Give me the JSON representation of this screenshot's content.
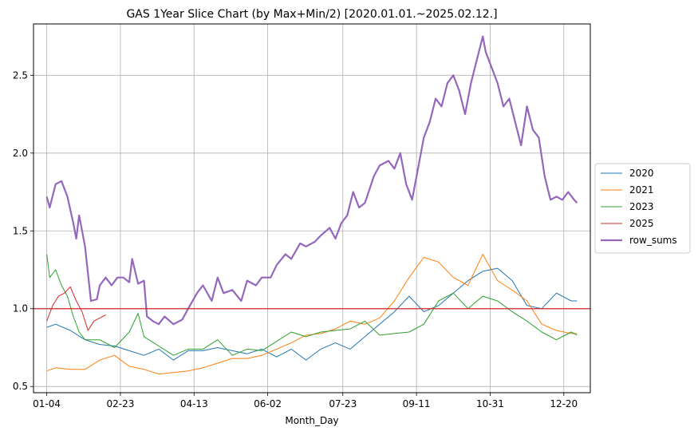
{
  "chart_data": {
    "type": "line",
    "title": "GAS 1Year Slice Chart (by Max+Min/2) [2020.01.01.~2025.02.12.]",
    "xlabel": "Month_Day",
    "ylabel": "",
    "x_ticks": [
      "01-04",
      "02-23",
      "04-13",
      "06-02",
      "07-23",
      "09-11",
      "10-31",
      "12-20"
    ],
    "x_tick_days": [
      4,
      54,
      104,
      154,
      205,
      255,
      305,
      355
    ],
    "xlim": [
      -5,
      373
    ],
    "ylim": [
      0.46,
      2.83
    ],
    "y_ticks": [
      0.5,
      1.0,
      1.5,
      2.0,
      2.5
    ],
    "y_tick_labels": [
      "0.5",
      "1.0",
      "1.5",
      "2.0",
      "2.5"
    ],
    "grid": true,
    "legend_position": "center-right (outside)",
    "reference_line": {
      "y": 1.0,
      "color": "#d62728"
    },
    "series": [
      {
        "name": "2020",
        "color": "#1f77b4",
        "width": 1,
        "x": [
          4,
          10,
          20,
          30,
          40,
          50,
          60,
          70,
          80,
          90,
          100,
          110,
          120,
          130,
          140,
          150,
          160,
          170,
          180,
          190,
          200,
          210,
          220,
          230,
          240,
          250,
          260,
          270,
          280,
          290,
          300,
          310,
          320,
          330,
          340,
          350,
          360,
          364
        ],
        "y": [
          0.88,
          0.9,
          0.86,
          0.8,
          0.77,
          0.76,
          0.73,
          0.7,
          0.74,
          0.67,
          0.73,
          0.73,
          0.75,
          0.73,
          0.71,
          0.74,
          0.69,
          0.74,
          0.67,
          0.74,
          0.78,
          0.74,
          0.82,
          0.9,
          0.98,
          1.08,
          0.98,
          1.02,
          1.1,
          1.18,
          1.24,
          1.26,
          1.18,
          1.02,
          1.0,
          1.1,
          1.05,
          1.05
        ]
      },
      {
        "name": "2021",
        "color": "#ff7f0e",
        "width": 1,
        "x": [
          4,
          10,
          20,
          30,
          40,
          50,
          60,
          70,
          80,
          90,
          100,
          110,
          120,
          130,
          140,
          150,
          160,
          170,
          180,
          190,
          200,
          210,
          220,
          230,
          240,
          250,
          260,
          270,
          280,
          290,
          300,
          310,
          320,
          330,
          340,
          350,
          360,
          364
        ],
        "y": [
          0.6,
          0.62,
          0.61,
          0.61,
          0.67,
          0.7,
          0.63,
          0.61,
          0.58,
          0.59,
          0.6,
          0.62,
          0.65,
          0.68,
          0.68,
          0.7,
          0.74,
          0.78,
          0.83,
          0.84,
          0.87,
          0.92,
          0.9,
          0.94,
          1.05,
          1.2,
          1.33,
          1.3,
          1.2,
          1.15,
          1.35,
          1.18,
          1.12,
          1.05,
          0.9,
          0.86,
          0.84,
          0.84
        ]
      },
      {
        "name": "2023",
        "color": "#2ca02c",
        "width": 1,
        "x": [
          4,
          6,
          10,
          14,
          18,
          22,
          26,
          30,
          40,
          50,
          60,
          66,
          70,
          80,
          90,
          100,
          110,
          120,
          130,
          140,
          150,
          160,
          170,
          180,
          190,
          200,
          210,
          220,
          230,
          240,
          250,
          260,
          270,
          280,
          290,
          300,
          310,
          320,
          330,
          340,
          350,
          360,
          364
        ],
        "y": [
          1.35,
          1.2,
          1.25,
          1.15,
          1.08,
          0.95,
          0.85,
          0.8,
          0.8,
          0.75,
          0.85,
          0.97,
          0.82,
          0.76,
          0.7,
          0.74,
          0.74,
          0.8,
          0.7,
          0.74,
          0.73,
          0.79,
          0.85,
          0.82,
          0.85,
          0.86,
          0.87,
          0.92,
          0.83,
          0.84,
          0.85,
          0.9,
          1.05,
          1.1,
          1.0,
          1.08,
          1.05,
          0.98,
          0.92,
          0.85,
          0.8,
          0.85,
          0.83
        ]
      },
      {
        "name": "2025",
        "color": "#d62728",
        "width": 1,
        "x": [
          4,
          8,
          12,
          16,
          20,
          24,
          28,
          32,
          36,
          40,
          44
        ],
        "y": [
          0.92,
          1.02,
          1.08,
          1.1,
          1.14,
          1.05,
          0.98,
          0.86,
          0.92,
          0.94,
          0.96
        ]
      },
      {
        "name": "row_sums",
        "color": "#9467bd",
        "width": 2.2,
        "x": [
          4,
          6,
          10,
          14,
          18,
          22,
          24,
          26,
          30,
          34,
          38,
          40,
          44,
          48,
          52,
          56,
          60,
          62,
          66,
          70,
          72,
          76,
          80,
          84,
          90,
          96,
          100,
          106,
          110,
          116,
          120,
          124,
          130,
          136,
          140,
          146,
          150,
          156,
          160,
          166,
          170,
          176,
          180,
          186,
          190,
          196,
          200,
          204,
          208,
          212,
          216,
          220,
          226,
          230,
          236,
          240,
          244,
          248,
          252,
          256,
          260,
          264,
          268,
          272,
          276,
          280,
          284,
          288,
          292,
          296,
          300,
          302,
          306,
          310,
          314,
          318,
          322,
          326,
          330,
          334,
          338,
          342,
          346,
          350,
          354,
          358,
          362,
          364
        ],
        "y": [
          1.72,
          1.65,
          1.8,
          1.82,
          1.72,
          1.55,
          1.45,
          1.6,
          1.4,
          1.05,
          1.06,
          1.15,
          1.2,
          1.15,
          1.2,
          1.2,
          1.17,
          1.32,
          1.16,
          1.18,
          0.95,
          0.92,
          0.9,
          0.95,
          0.9,
          0.93,
          1.0,
          1.1,
          1.15,
          1.05,
          1.2,
          1.1,
          1.12,
          1.05,
          1.18,
          1.15,
          1.2,
          1.2,
          1.28,
          1.35,
          1.32,
          1.42,
          1.4,
          1.43,
          1.47,
          1.52,
          1.45,
          1.55,
          1.6,
          1.75,
          1.65,
          1.68,
          1.85,
          1.92,
          1.95,
          1.9,
          2.0,
          1.8,
          1.7,
          1.9,
          2.1,
          2.2,
          2.35,
          2.3,
          2.45,
          2.5,
          2.4,
          2.25,
          2.45,
          2.6,
          2.75,
          2.65,
          2.55,
          2.45,
          2.3,
          2.35,
          2.2,
          2.05,
          2.3,
          2.15,
          2.1,
          1.85,
          1.7,
          1.72,
          1.7,
          1.75,
          1.7,
          1.68
        ]
      }
    ]
  }
}
